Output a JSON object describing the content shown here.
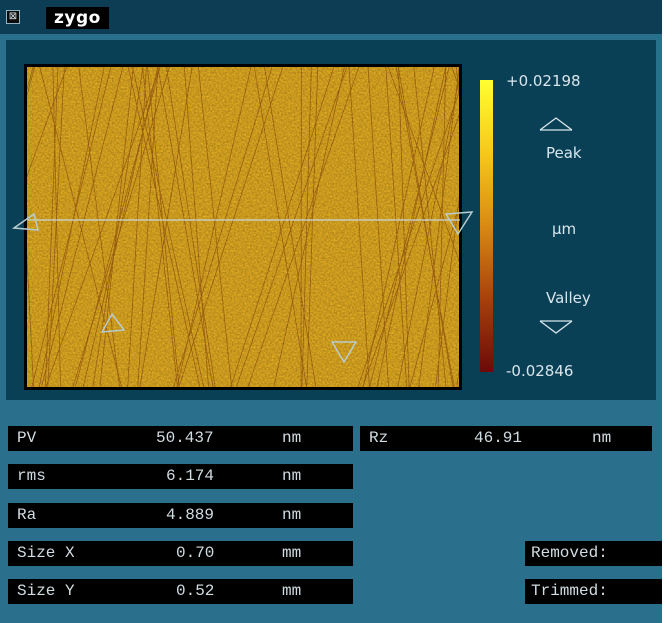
{
  "window": {
    "logo_text": "zygo",
    "close_symbol": "⊠",
    "icons": [
      "close-box-icon"
    ]
  },
  "colorbar": {
    "max_label": "+0.02198",
    "peak_label": "Peak",
    "unit_label": "µm",
    "valley_label": "Valley",
    "min_label": "-0.02846"
  },
  "results": {
    "pv": {
      "label": "PV",
      "value": "50.437",
      "unit": "nm"
    },
    "rms": {
      "label": "rms",
      "value": "6.174",
      "unit": "nm"
    },
    "ra": {
      "label": "Ra",
      "value": "4.889",
      "unit": "nm"
    },
    "size_x": {
      "label": "Size X",
      "value": "0.70",
      "unit": "mm"
    },
    "size_y": {
      "label": "Size Y",
      "value": "0.52",
      "unit": "mm"
    },
    "rz": {
      "label": "Rz",
      "value": "46.91",
      "unit": "nm"
    },
    "removed_label": "Removed:",
    "trimmed_label": "Trimmed:"
  },
  "colors": {
    "window_bg": "#2a6f8c",
    "panel_bg": "#0a4055",
    "colorbar_top": "#ffff30",
    "colorbar_bottom": "#6b0a08"
  }
}
